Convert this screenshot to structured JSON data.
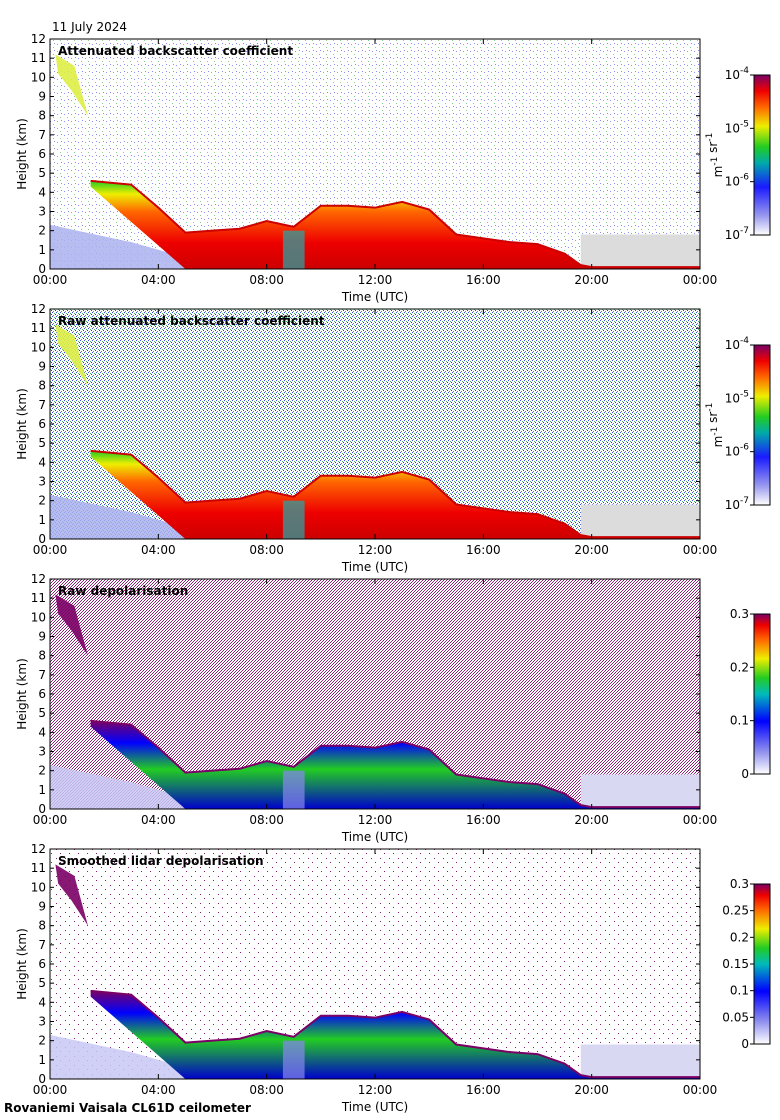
{
  "date": "11 July 2024",
  "footer": "Rovaniemi Vaisala CL61D ceilometer",
  "chart_data": [
    {
      "type": "heatmap",
      "title": "Attenuated backscatter coefficient",
      "xlabel": "Time (UTC)",
      "ylabel": "Height (km)",
      "xticks": [
        "00:00",
        "04:00",
        "08:00",
        "12:00",
        "16:00",
        "20:00",
        "00:00"
      ],
      "yticks": [
        "0",
        "1",
        "2",
        "3",
        "4",
        "5",
        "6",
        "7",
        "8",
        "9",
        "10",
        "11",
        "12"
      ],
      "ylim": [
        0,
        12
      ],
      "colorbar": {
        "scale": "log",
        "ticks": [
          "10",
          "10",
          "10",
          "10"
        ],
        "exponents": [
          "-7",
          "-6",
          "-5",
          "-4"
        ],
        "unit": "m-1 sr-1",
        "unit_main": [
          "m",
          "sr"
        ],
        "unit_exp": [
          "-1",
          "-1"
        ]
      },
      "profile_hours": [
        0,
        1,
        1.5,
        3,
        4,
        5,
        6,
        7,
        8,
        9,
        10,
        11,
        12,
        13,
        14,
        15,
        16,
        17,
        18,
        19,
        19.6,
        20,
        24
      ],
      "cloud_top_km": [
        0.5,
        0.6,
        4.6,
        4.4,
        3.2,
        1.9,
        2.0,
        2.1,
        2.5,
        2.2,
        3.3,
        3.3,
        3.2,
        3.5,
        3.1,
        1.8,
        1.6,
        1.4,
        1.3,
        0.8,
        0.2,
        0.1,
        0.1
      ],
      "noise": "low"
    },
    {
      "type": "heatmap",
      "title": "Raw attenuated backscatter coefficient",
      "xlabel": "Time (UTC)",
      "ylabel": "Height (km)",
      "xticks": [
        "00:00",
        "04:00",
        "08:00",
        "12:00",
        "16:00",
        "20:00",
        "00:00"
      ],
      "yticks": [
        "0",
        "1",
        "2",
        "3",
        "4",
        "5",
        "6",
        "7",
        "8",
        "9",
        "10",
        "11",
        "12"
      ],
      "ylim": [
        0,
        12
      ],
      "colorbar": {
        "scale": "log",
        "ticks": [
          "10",
          "10",
          "10",
          "10"
        ],
        "exponents": [
          "-7",
          "-6",
          "-5",
          "-4"
        ],
        "unit": "m-1 sr-1",
        "unit_main": [
          "m",
          "sr"
        ],
        "unit_exp": [
          "-1",
          "-1"
        ]
      },
      "profile_hours": [
        0,
        1,
        1.5,
        3,
        4,
        5,
        6,
        7,
        8,
        9,
        10,
        11,
        12,
        13,
        14,
        15,
        16,
        17,
        18,
        19,
        19.6,
        20,
        24
      ],
      "cloud_top_km": [
        0.5,
        0.6,
        4.6,
        4.4,
        3.2,
        1.9,
        2.0,
        2.1,
        2.5,
        2.2,
        3.3,
        3.3,
        3.2,
        3.5,
        3.1,
        1.8,
        1.6,
        1.4,
        1.3,
        0.8,
        0.2,
        0.1,
        0.1
      ],
      "noise": "high"
    },
    {
      "type": "heatmap",
      "title": "Raw depolarisation",
      "xlabel": "Time (UTC)",
      "ylabel": "Height (km)",
      "xticks": [
        "00:00",
        "04:00",
        "08:00",
        "12:00",
        "16:00",
        "20:00",
        "00:00"
      ],
      "yticks": [
        "0",
        "1",
        "2",
        "3",
        "4",
        "5",
        "6",
        "7",
        "8",
        "9",
        "10",
        "11",
        "12"
      ],
      "ylim": [
        0,
        12
      ],
      "colorbar": {
        "scale": "linear",
        "ticks": [
          "0",
          "0.1",
          "0.2",
          "0.3"
        ],
        "range": [
          0,
          0.3
        ]
      },
      "profile_hours": [
        0,
        1,
        1.5,
        3,
        4,
        5,
        6,
        7,
        8,
        9,
        10,
        11,
        12,
        13,
        14,
        15,
        16,
        17,
        18,
        19,
        19.6,
        20,
        24
      ],
      "cloud_top_km": [
        0.5,
        0.6,
        4.6,
        4.4,
        3.2,
        1.9,
        2.0,
        2.1,
        2.5,
        2.2,
        3.3,
        3.3,
        3.2,
        3.5,
        3.1,
        1.8,
        1.6,
        1.4,
        1.3,
        0.8,
        0.2,
        0.1,
        0.1
      ],
      "noise": "depol"
    },
    {
      "type": "heatmap",
      "title": "Smoothed lidar depolarisation",
      "xlabel": "Time (UTC)",
      "ylabel": "Height (km)",
      "xticks": [
        "00:00",
        "04:00",
        "08:00",
        "12:00",
        "16:00",
        "20:00",
        "00:00"
      ],
      "yticks": [
        "0",
        "1",
        "2",
        "3",
        "4",
        "5",
        "6",
        "7",
        "8",
        "9",
        "10",
        "11",
        "12"
      ],
      "ylim": [
        0,
        12
      ],
      "colorbar": {
        "scale": "linear",
        "ticks": [
          "0",
          "0.05",
          "0.1",
          "0.15",
          "0.2",
          "0.25",
          "0.3"
        ],
        "range": [
          0,
          0.3
        ]
      },
      "profile_hours": [
        0,
        1,
        1.5,
        3,
        4,
        5,
        6,
        7,
        8,
        9,
        10,
        11,
        12,
        13,
        14,
        15,
        16,
        17,
        18,
        19,
        19.6,
        20,
        24
      ],
      "cloud_top_km": [
        0.5,
        0.6,
        4.6,
        4.4,
        3.2,
        1.9,
        2.0,
        2.1,
        2.5,
        2.2,
        3.3,
        3.3,
        3.2,
        3.5,
        3.1,
        1.8,
        1.6,
        1.4,
        1.3,
        0.8,
        0.2,
        0.1,
        0.1
      ],
      "noise": "smooth"
    }
  ]
}
